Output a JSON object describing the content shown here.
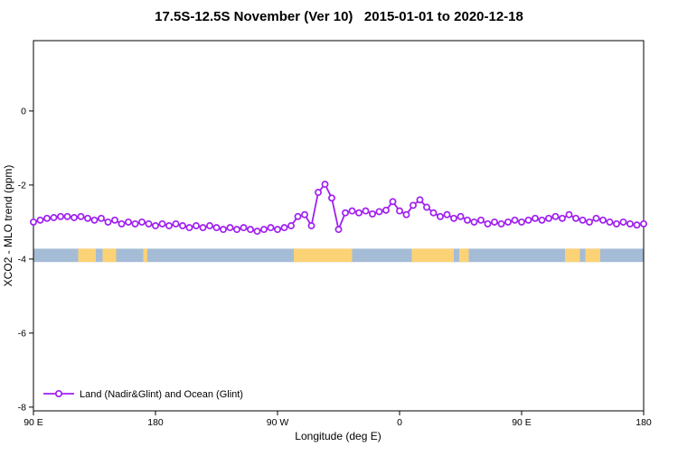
{
  "chart_data": {
    "type": "line",
    "title": "17.5S-12.5S November (Ver 10)   2015-01-01 to 2020-12-18",
    "xlabel": "Longitude (deg E)",
    "ylabel": "XCO2 - MLO trend (ppm)",
    "xlim": [
      90,
      540
    ],
    "ylim": [
      -8.1,
      1.9
    ],
    "grid": false,
    "x_ticks": [
      {
        "lon": 90,
        "label": "90 E"
      },
      {
        "lon": 180,
        "label": "180"
      },
      {
        "lon": 270,
        "label": "90 W"
      },
      {
        "lon": 360,
        "label": "0"
      },
      {
        "lon": 450,
        "label": "90 E"
      },
      {
        "lon": 540,
        "label": "180"
      }
    ],
    "y_ticks": [
      {
        "v": 0,
        "label": "0"
      },
      {
        "v": -2,
        "label": "-2"
      },
      {
        "v": -4,
        "label": "-4"
      },
      {
        "v": -6,
        "label": "-6"
      },
      {
        "v": -8,
        "label": "-8"
      }
    ],
    "series": [
      {
        "name": "Land (Nadir&Glint) and Ocean (Glint)",
        "color": "#a020f0",
        "marker": "open-circle",
        "x": [
          90,
          95,
          100,
          105,
          110,
          115,
          120,
          125,
          130,
          135,
          140,
          145,
          150,
          155,
          160,
          165,
          170,
          175,
          180,
          185,
          190,
          195,
          200,
          205,
          210,
          215,
          220,
          225,
          230,
          235,
          240,
          245,
          250,
          255,
          260,
          265,
          270,
          275,
          280,
          285,
          290,
          295,
          300,
          305,
          310,
          315,
          320,
          325,
          330,
          335,
          340,
          345,
          350,
          355,
          360,
          365,
          370,
          375,
          380,
          385,
          390,
          395,
          400,
          405,
          410,
          415,
          420,
          425,
          430,
          435,
          440,
          445,
          450,
          455,
          460,
          465,
          470,
          475,
          480,
          485,
          490,
          495,
          500,
          505,
          510,
          515,
          520,
          525,
          530,
          535,
          540
        ],
        "y": [
          -3.0,
          -2.95,
          -2.9,
          -2.88,
          -2.85,
          -2.85,
          -2.88,
          -2.85,
          -2.9,
          -2.95,
          -2.9,
          -3.0,
          -2.95,
          -3.05,
          -3.0,
          -3.05,
          -3.0,
          -3.05,
          -3.1,
          -3.05,
          -3.1,
          -3.05,
          -3.1,
          -3.15,
          -3.1,
          -3.15,
          -3.1,
          -3.15,
          -3.2,
          -3.15,
          -3.2,
          -3.15,
          -3.2,
          -3.25,
          -3.2,
          -3.15,
          -3.2,
          -3.15,
          -3.1,
          -2.85,
          -2.8,
          -3.1,
          -2.2,
          -1.98,
          -2.35,
          -3.2,
          -2.75,
          -2.7,
          -2.75,
          -2.7,
          -2.78,
          -2.72,
          -2.68,
          -2.45,
          -2.7,
          -2.8,
          -2.55,
          -2.4,
          -2.6,
          -2.75,
          -2.85,
          -2.8,
          -2.9,
          -2.85,
          -2.95,
          -3.0,
          -2.95,
          -3.05,
          -3.0,
          -3.05,
          -3.0,
          -2.95,
          -3.0,
          -2.95,
          -2.9,
          -2.95,
          -2.9,
          -2.85,
          -2.9,
          -2.8,
          -2.9,
          -2.95,
          -3.0,
          -2.9,
          -2.95,
          -3.0,
          -3.05,
          -3.0,
          -3.05,
          -3.08,
          -3.05
        ]
      }
    ],
    "land_ocean_band": {
      "y_top": -3.72,
      "y_bottom": -4.08,
      "ocean_color": "#a5bcd6",
      "land_color": "#fcd276",
      "land_segments_lon": [
        [
          123,
          136
        ],
        [
          141,
          151
        ],
        [
          171,
          174
        ],
        [
          282,
          325
        ],
        [
          369,
          400
        ],
        [
          404,
          411
        ],
        [
          482,
          493
        ],
        [
          497,
          508
        ]
      ]
    },
    "legend": {
      "label": "Land (Nadir&Glint) and Ocean (Glint)",
      "position": "bottom-left"
    }
  }
}
